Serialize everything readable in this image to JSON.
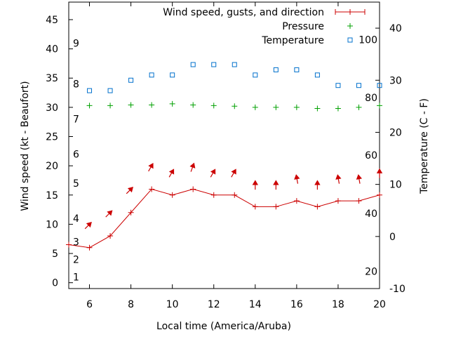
{
  "chart_data": {
    "type": "line",
    "xlabel": "Local time (America/Aruba)",
    "ylabel": "Wind speed (kt - Beaufort)",
    "y2label": "Temperature (C - F)",
    "xlim": [
      5,
      20
    ],
    "ylim": [
      -1,
      48
    ],
    "y2lim": [
      -10,
      45
    ],
    "grid": false,
    "legend_position": "top-right",
    "x_ticks": [
      "6",
      "8",
      "10",
      "12",
      "14",
      "16",
      "18",
      "20"
    ],
    "y_ticks": [
      "0",
      "5",
      "10",
      "15",
      "20",
      "25",
      "30",
      "35",
      "40",
      "45"
    ],
    "y2_ticks": [
      "-10",
      "0",
      "10",
      "20",
      "30",
      "40"
    ],
    "beaufort_labels": [
      {
        "label": "1",
        "kt": 1
      },
      {
        "label": "2",
        "kt": 4
      },
      {
        "label": "3",
        "kt": 7
      },
      {
        "label": "4",
        "kt": 11
      },
      {
        "label": "5",
        "kt": 17
      },
      {
        "label": "6",
        "kt": 22
      },
      {
        "label": "7",
        "kt": 28
      },
      {
        "label": "8",
        "kt": 34
      },
      {
        "label": "9",
        "kt": 41
      }
    ],
    "fahrenheit_labels": [
      {
        "label": "20",
        "c": -6.7
      },
      {
        "label": "40",
        "c": 4.4
      },
      {
        "label": "60",
        "c": 15.6
      },
      {
        "label": "80",
        "c": 26.7
      },
      {
        "label": "100",
        "c": 37.8
      }
    ],
    "series": [
      {
        "name": "Wind speed, gusts, and direction",
        "color": "#cc0000",
        "x": [
          5,
          6,
          7,
          8,
          9,
          10,
          11,
          12,
          13,
          14,
          15,
          16,
          17,
          18,
          19,
          20
        ],
        "values": [
          6.5,
          6,
          8,
          12,
          16,
          15,
          16,
          15,
          15,
          13,
          13,
          14,
          13,
          14,
          14,
          15
        ]
      },
      {
        "name": "Pressure",
        "color": "#00a000",
        "x": [
          6,
          7,
          8,
          9,
          10,
          11,
          12,
          13,
          14,
          15,
          16,
          17,
          18,
          19,
          20
        ],
        "values": [
          30.3,
          30.3,
          30.4,
          30.4,
          30.6,
          30.4,
          30.3,
          30.2,
          30.0,
          30.0,
          30.0,
          29.8,
          29.8,
          30.0,
          30.3
        ]
      },
      {
        "name": "Temperature",
        "color": "#0070cc",
        "x": [
          6,
          7,
          8,
          9,
          10,
          11,
          12,
          13,
          14,
          15,
          16,
          17,
          18,
          19,
          20
        ],
        "values": [
          28,
          28,
          30,
          31,
          31,
          33,
          33,
          33,
          31,
          32,
          32,
          31,
          29,
          29,
          29
        ]
      }
    ],
    "wind_arrows": [
      {
        "x": 6,
        "y": 10,
        "angle": 135
      },
      {
        "x": 7,
        "y": 12,
        "angle": 135
      },
      {
        "x": 8,
        "y": 16,
        "angle": 135
      },
      {
        "x": 9,
        "y": 20,
        "angle": 120
      },
      {
        "x": 10,
        "y": 19,
        "angle": 120
      },
      {
        "x": 11,
        "y": 20,
        "angle": 110
      },
      {
        "x": 12,
        "y": 19,
        "angle": 120
      },
      {
        "x": 13,
        "y": 19,
        "angle": 120
      },
      {
        "x": 14,
        "y": 17,
        "angle": 90
      },
      {
        "x": 15,
        "y": 17,
        "angle": 90
      },
      {
        "x": 16,
        "y": 18,
        "angle": 80
      },
      {
        "x": 17,
        "y": 17,
        "angle": 90
      },
      {
        "x": 18,
        "y": 18,
        "angle": 80
      },
      {
        "x": 19,
        "y": 18,
        "angle": 80
      },
      {
        "x": 20,
        "y": 19,
        "angle": 90
      }
    ]
  }
}
